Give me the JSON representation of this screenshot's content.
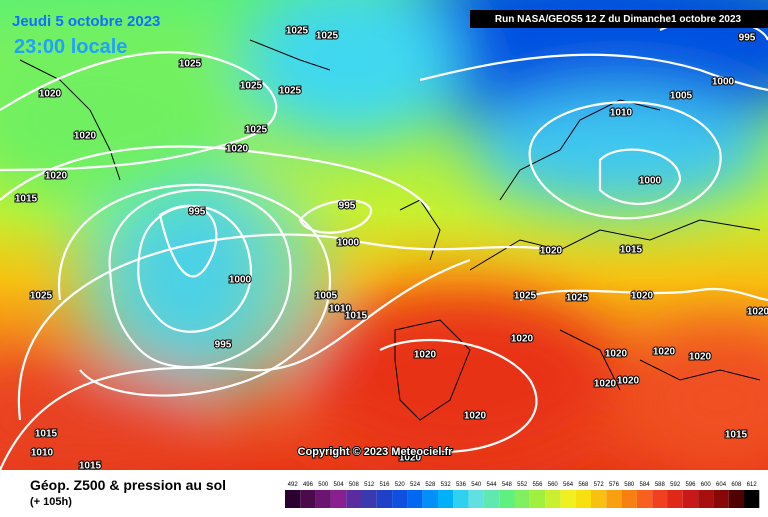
{
  "header": {
    "date": "Jeudi 5 octobre 2023",
    "time": "23:00 locale",
    "run": "Run NASA/GEOS5 12 Z du Dimanche1 octobre 2023"
  },
  "copyright": "Copyright © 2023 Meteociel.fr",
  "isobar_labels": [
    1025,
    1020,
    1020,
    1020,
    1015,
    1025,
    1025,
    1025,
    1025,
    1025,
    1020,
    995,
    995,
    1000,
    1000,
    1005,
    1010,
    1015,
    995,
    1025,
    1015,
    1010,
    1015,
    1020,
    1020,
    1020,
    1020,
    1025,
    1025,
    1020,
    1015,
    1000,
    1010,
    1005,
    1000,
    995,
    1020,
    1020,
    1020,
    1020,
    1020,
    1020,
    1020,
    1015
  ],
  "legend": {
    "title": "Géop. Z500 & pression au sol",
    "lead": "(+ 105h)",
    "ticks": [
      492,
      496,
      500,
      504,
      508,
      512,
      516,
      520,
      524,
      528,
      532,
      536,
      540,
      544,
      548,
      552,
      556,
      560,
      564,
      568,
      572,
      576,
      580,
      584,
      588,
      592,
      596,
      600,
      604,
      608,
      612
    ],
    "colors": [
      "#2a0030",
      "#4b0a4b",
      "#6b1470",
      "#8a2090",
      "#5a2ca0",
      "#3a3ab0",
      "#2040c8",
      "#1050e0",
      "#0068f0",
      "#0090f8",
      "#00b0f8",
      "#30d0f0",
      "#60e0e0",
      "#60e8b0",
      "#60f080",
      "#80f060",
      "#a0f040",
      "#c8f030",
      "#f0f020",
      "#f8e010",
      "#f8c010",
      "#f8a010",
      "#f88010",
      "#f86020",
      "#f04020",
      "#e02818",
      "#c81818",
      "#a81010",
      "#880808",
      "#500000",
      "#000000"
    ]
  }
}
